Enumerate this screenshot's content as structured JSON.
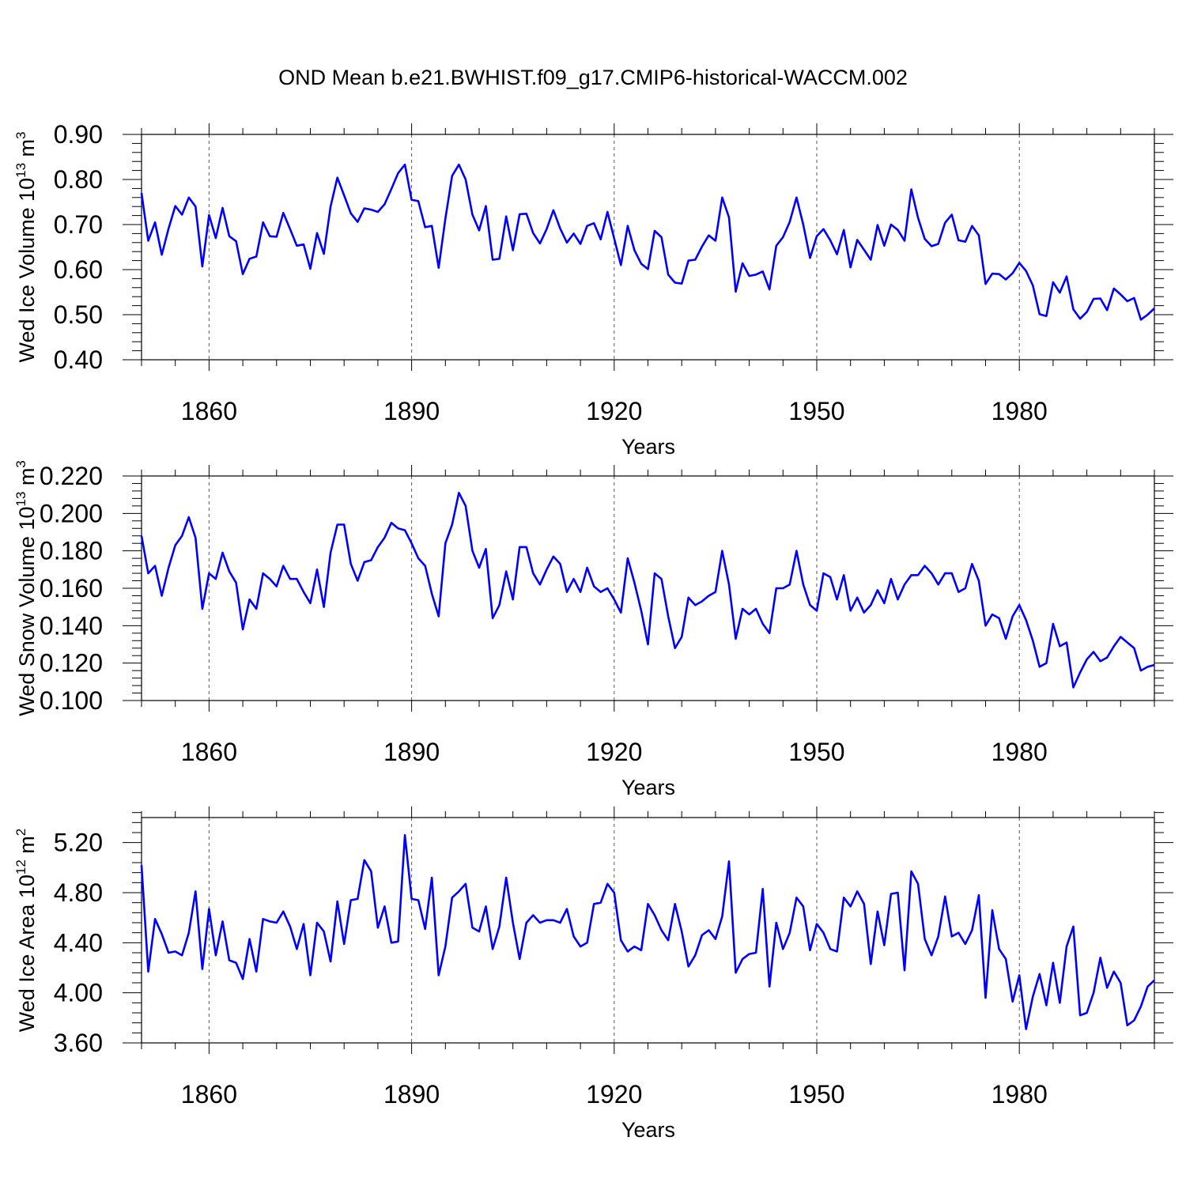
{
  "figure_title": "OND Mean b.e21.BWHIST.f09_g17.CMIP6-historical-WACCM.002",
  "line_color": "#0000ff",
  "chart_data": [
    {
      "type": "line",
      "ylabel": "Wed Ice Volume 10",
      "ylabel_exp": "13",
      "ylabel_unit": " m",
      "ylabel_unit_exp": "3",
      "xlabel": "Years",
      "xlim": [
        1850,
        2000
      ],
      "ylim": [
        0.4,
        0.9
      ],
      "yticks": [
        0.4,
        0.5,
        0.6,
        0.7,
        0.8,
        0.9
      ],
      "ytick_labels": [
        "0.40",
        "0.50",
        "0.60",
        "0.70",
        "0.80",
        "0.90"
      ],
      "xticks": [
        1860,
        1890,
        1920,
        1950,
        1980
      ],
      "xtick_labels": [
        "1860",
        "1890",
        "1920",
        "1950",
        "1980"
      ],
      "x_start": 1850,
      "values": [
        0.77,
        0.664,
        0.705,
        0.633,
        0.691,
        0.741,
        0.722,
        0.76,
        0.74,
        0.607,
        0.721,
        0.67,
        0.737,
        0.674,
        0.663,
        0.59,
        0.624,
        0.629,
        0.705,
        0.674,
        0.673,
        0.726,
        0.69,
        0.653,
        0.656,
        0.602,
        0.681,
        0.635,
        0.74,
        0.804,
        0.765,
        0.725,
        0.706,
        0.736,
        0.733,
        0.728,
        0.745,
        0.779,
        0.814,
        0.833,
        0.755,
        0.752,
        0.694,
        0.697,
        0.604,
        0.713,
        0.808,
        0.833,
        0.8,
        0.722,
        0.687,
        0.741,
        0.622,
        0.624,
        0.718,
        0.643,
        0.723,
        0.724,
        0.681,
        0.658,
        0.69,
        0.732,
        0.691,
        0.66,
        0.68,
        0.657,
        0.697,
        0.703,
        0.667,
        0.728,
        0.669,
        0.61,
        0.697,
        0.643,
        0.613,
        0.601,
        0.686,
        0.672,
        0.589,
        0.571,
        0.569,
        0.62,
        0.622,
        0.651,
        0.676,
        0.664,
        0.76,
        0.716,
        0.551,
        0.614,
        0.586,
        0.589,
        0.596,
        0.556,
        0.653,
        0.672,
        0.706,
        0.76,
        0.7,
        0.626,
        0.674,
        0.69,
        0.665,
        0.634,
        0.688,
        0.605,
        0.666,
        0.644,
        0.622,
        0.699,
        0.653,
        0.7,
        0.688,
        0.664,
        0.778,
        0.715,
        0.668,
        0.652,
        0.657,
        0.704,
        0.722,
        0.665,
        0.662,
        0.697,
        0.676,
        0.568,
        0.591,
        0.59,
        0.578,
        0.592,
        0.615,
        0.597,
        0.565,
        0.501,
        0.497,
        0.572,
        0.549,
        0.585,
        0.512,
        0.491,
        0.506,
        0.535,
        0.536,
        0.51,
        0.558,
        0.545,
        0.53,
        0.537,
        0.489,
        0.5,
        0.514
      ]
    },
    {
      "type": "line",
      "ylabel": "Wed Snow Volume 10",
      "ylabel_exp": "13",
      "ylabel_unit": " m",
      "ylabel_unit_exp": "3",
      "xlabel": "Years",
      "xlim": [
        1850,
        2000
      ],
      "ylim": [
        0.1,
        0.22
      ],
      "yticks": [
        0.1,
        0.12,
        0.14,
        0.16,
        0.18,
        0.2,
        0.22
      ],
      "ytick_labels": [
        "0.100",
        "0.120",
        "0.140",
        "0.160",
        "0.180",
        "0.200",
        "0.220"
      ],
      "xticks": [
        1860,
        1890,
        1920,
        1950,
        1980
      ],
      "xtick_labels": [
        "1860",
        "1890",
        "1920",
        "1950",
        "1980"
      ],
      "x_start": 1850,
      "values": [
        0.188,
        0.168,
        0.172,
        0.156,
        0.171,
        0.183,
        0.188,
        0.198,
        0.187,
        0.149,
        0.168,
        0.165,
        0.179,
        0.169,
        0.163,
        0.138,
        0.154,
        0.149,
        0.168,
        0.165,
        0.161,
        0.172,
        0.165,
        0.165,
        0.158,
        0.152,
        0.17,
        0.15,
        0.179,
        0.194,
        0.194,
        0.173,
        0.164,
        0.174,
        0.175,
        0.182,
        0.187,
        0.195,
        0.192,
        0.191,
        0.184,
        0.176,
        0.172,
        0.157,
        0.145,
        0.184,
        0.194,
        0.211,
        0.204,
        0.18,
        0.171,
        0.181,
        0.144,
        0.151,
        0.169,
        0.154,
        0.182,
        0.182,
        0.168,
        0.162,
        0.17,
        0.177,
        0.173,
        0.158,
        0.165,
        0.158,
        0.171,
        0.161,
        0.158,
        0.16,
        0.154,
        0.147,
        0.176,
        0.163,
        0.148,
        0.13,
        0.168,
        0.165,
        0.145,
        0.128,
        0.134,
        0.155,
        0.151,
        0.153,
        0.156,
        0.158,
        0.18,
        0.162,
        0.133,
        0.149,
        0.146,
        0.149,
        0.141,
        0.136,
        0.16,
        0.16,
        0.162,
        0.18,
        0.162,
        0.151,
        0.148,
        0.168,
        0.166,
        0.154,
        0.167,
        0.148,
        0.155,
        0.147,
        0.151,
        0.159,
        0.152,
        0.165,
        0.154,
        0.162,
        0.167,
        0.167,
        0.172,
        0.168,
        0.162,
        0.168,
        0.168,
        0.158,
        0.16,
        0.173,
        0.164,
        0.14,
        0.146,
        0.144,
        0.133,
        0.145,
        0.151,
        0.143,
        0.132,
        0.118,
        0.12,
        0.141,
        0.129,
        0.131,
        0.107,
        0.115,
        0.122,
        0.126,
        0.121,
        0.123,
        0.129,
        0.134,
        0.131,
        0.128,
        0.116,
        0.118,
        0.119
      ]
    },
    {
      "type": "line",
      "ylabel": "Wed Ice Area 10",
      "ylabel_exp": "12",
      "ylabel_unit": " m",
      "ylabel_unit_exp": "2",
      "xlabel": "Years",
      "xlim": [
        1850,
        2000
      ],
      "ylim": [
        3.6,
        5.4
      ],
      "yticks": [
        3.6,
        4.0,
        4.4,
        4.8,
        5.2
      ],
      "ytick_labels": [
        "3.60",
        "4.00",
        "4.40",
        "4.80",
        "5.20"
      ],
      "xticks": [
        1860,
        1890,
        1920,
        1950,
        1980
      ],
      "xtick_labels": [
        "1860",
        "1890",
        "1920",
        "1950",
        "1980"
      ],
      "x_start": 1850,
      "values": [
        5.02,
        4.17,
        4.59,
        4.47,
        4.32,
        4.33,
        4.3,
        4.48,
        4.81,
        4.19,
        4.67,
        4.3,
        4.57,
        4.26,
        4.24,
        4.11,
        4.43,
        4.17,
        4.59,
        4.57,
        4.56,
        4.65,
        4.53,
        4.35,
        4.55,
        4.14,
        4.56,
        4.49,
        4.25,
        4.73,
        4.39,
        4.74,
        4.75,
        5.06,
        4.97,
        4.52,
        4.69,
        4.4,
        4.41,
        5.26,
        4.75,
        4.74,
        4.51,
        4.92,
        4.14,
        4.37,
        4.76,
        4.81,
        4.87,
        4.52,
        4.49,
        4.69,
        4.35,
        4.53,
        4.92,
        4.56,
        4.27,
        4.56,
        4.62,
        4.56,
        4.58,
        4.58,
        4.56,
        4.67,
        4.45,
        4.37,
        4.4,
        4.71,
        4.72,
        4.87,
        4.8,
        4.42,
        4.33,
        4.37,
        4.34,
        4.71,
        4.62,
        4.5,
        4.42,
        4.71,
        4.49,
        4.21,
        4.3,
        4.46,
        4.5,
        4.43,
        4.61,
        5.05,
        4.16,
        4.27,
        4.31,
        4.32,
        4.83,
        4.05,
        4.56,
        4.35,
        4.48,
        4.76,
        4.69,
        4.34,
        4.55,
        4.48,
        4.35,
        4.33,
        4.76,
        4.69,
        4.81,
        4.71,
        4.23,
        4.65,
        4.38,
        4.79,
        4.8,
        4.18,
        4.97,
        4.87,
        4.43,
        4.3,
        4.45,
        4.77,
        4.45,
        4.48,
        4.39,
        4.5,
        4.78,
        3.96,
        4.66,
        4.35,
        4.27,
        3.93,
        4.14,
        3.71,
        3.97,
        4.15,
        3.9,
        4.24,
        3.92,
        4.37,
        4.53,
        3.82,
        3.84,
        4.0,
        4.28,
        4.04,
        4.17,
        4.08,
        3.74,
        3.78,
        3.89,
        4.05,
        4.1
      ]
    }
  ]
}
